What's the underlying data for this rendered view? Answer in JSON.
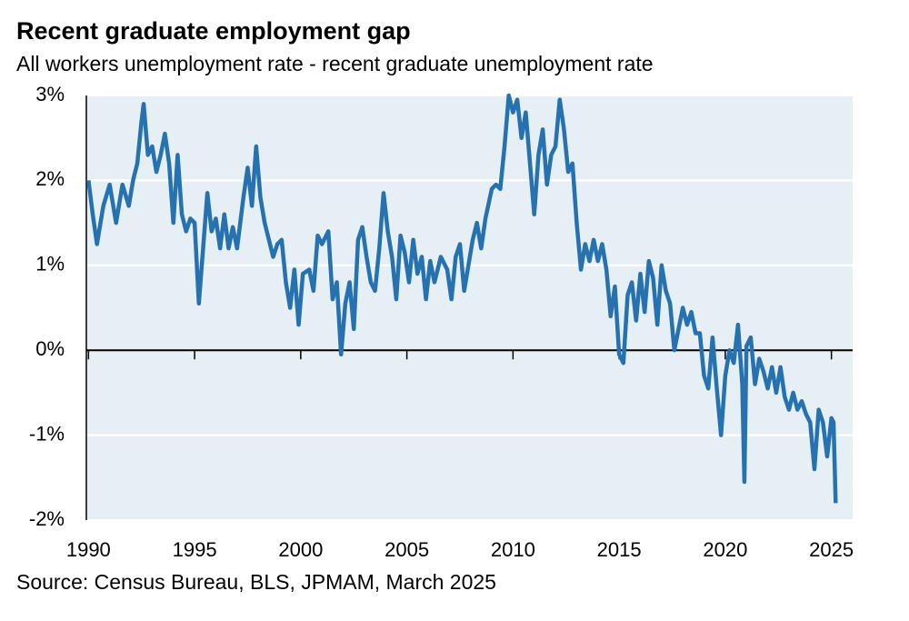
{
  "chart_data": {
    "type": "line",
    "title": "Recent graduate employment gap",
    "subtitle": "All workers unemployment rate - recent graduate unemployment rate",
    "source": "Source: Census Bureau, BLS, JPMAM, March 2025",
    "color": "#2672b0",
    "grid": true,
    "xlim": [
      1989.9,
      2026
    ],
    "xticks": [
      1990,
      1995,
      2000,
      2005,
      2010,
      2015,
      2020,
      2025
    ],
    "ylim": [
      -2,
      3
    ],
    "yticks": [
      {
        "value": 3,
        "label": "3%"
      },
      {
        "value": 2,
        "label": "2%"
      },
      {
        "value": 1,
        "label": "1%"
      },
      {
        "value": 0,
        "label": "0%"
      },
      {
        "value": -1,
        "label": "-1%"
      },
      {
        "value": -2,
        "label": "-2%"
      }
    ],
    "x": [
      1990.0,
      1990.2,
      1990.4,
      1990.7,
      1991.0,
      1991.3,
      1991.6,
      1991.9,
      1992.1,
      1992.3,
      1992.5,
      1992.6,
      1992.8,
      1993.0,
      1993.2,
      1993.4,
      1993.6,
      1993.8,
      1994.0,
      1994.2,
      1994.4,
      1994.6,
      1994.8,
      1995.0,
      1995.2,
      1995.4,
      1995.6,
      1995.8,
      1996.0,
      1996.2,
      1996.4,
      1996.6,
      1996.8,
      1997.0,
      1997.3,
      1997.5,
      1997.7,
      1997.9,
      1998.1,
      1998.3,
      1998.5,
      1998.7,
      1998.9,
      1999.1,
      1999.3,
      1999.5,
      1999.7,
      1999.9,
      2000.1,
      2000.4,
      2000.6,
      2000.8,
      2001.0,
      2001.3,
      2001.5,
      2001.7,
      2001.9,
      2002.1,
      2002.3,
      2002.5,
      2002.7,
      2002.9,
      2003.1,
      2003.3,
      2003.5,
      2003.7,
      2003.9,
      2004.1,
      2004.3,
      2004.5,
      2004.7,
      2004.9,
      2005.1,
      2005.3,
      2005.5,
      2005.7,
      2005.9,
      2006.1,
      2006.3,
      2006.6,
      2006.9,
      2007.1,
      2007.3,
      2007.5,
      2007.7,
      2007.9,
      2008.1,
      2008.3,
      2008.5,
      2008.7,
      2009.0,
      2009.2,
      2009.4,
      2009.6,
      2009.8,
      2010.0,
      2010.2,
      2010.4,
      2010.6,
      2010.8,
      2011.0,
      2011.2,
      2011.4,
      2011.6,
      2011.8,
      2012.0,
      2012.2,
      2012.4,
      2012.6,
      2012.8,
      2013.0,
      2013.2,
      2013.4,
      2013.6,
      2013.8,
      2014.0,
      2014.2,
      2014.4,
      2014.6,
      2014.8,
      2015.0,
      2015.2,
      2015.4,
      2015.6,
      2015.8,
      2016.0,
      2016.2,
      2016.4,
      2016.6,
      2016.8,
      2017.0,
      2017.2,
      2017.4,
      2017.6,
      2017.8,
      2018.0,
      2018.2,
      2018.4,
      2018.6,
      2018.8,
      2019.0,
      2019.2,
      2019.4,
      2019.6,
      2019.8,
      2020.0,
      2020.2,
      2020.4,
      2020.6,
      2020.8,
      2020.9,
      2021.0,
      2021.2,
      2021.4,
      2021.6,
      2021.8,
      2022.0,
      2022.2,
      2022.4,
      2022.6,
      2022.8,
      2023.0,
      2023.2,
      2023.4,
      2023.6,
      2023.8,
      2024.0,
      2024.2,
      2024.4,
      2024.6,
      2024.8,
      2025.0,
      2025.1,
      2025.2
    ],
    "values": [
      2.0,
      1.6,
      1.25,
      1.7,
      1.95,
      1.5,
      1.95,
      1.7,
      2.0,
      2.2,
      2.7,
      2.9,
      2.3,
      2.4,
      2.1,
      2.3,
      2.55,
      2.2,
      1.5,
      2.3,
      1.6,
      1.4,
      1.55,
      1.5,
      0.55,
      1.2,
      1.85,
      1.4,
      1.55,
      1.2,
      1.6,
      1.2,
      1.45,
      1.2,
      1.8,
      2.15,
      1.7,
      2.4,
      1.8,
      1.5,
      1.3,
      1.1,
      1.25,
      1.3,
      0.8,
      0.5,
      0.95,
      0.3,
      0.9,
      0.95,
      0.7,
      1.35,
      1.25,
      1.4,
      0.6,
      0.8,
      -0.05,
      0.55,
      0.8,
      0.25,
      1.3,
      1.45,
      1.1,
      0.8,
      0.7,
      1.2,
      1.85,
      1.4,
      1.1,
      0.6,
      1.35,
      1.15,
      0.8,
      1.3,
      0.9,
      1.1,
      0.6,
      1.05,
      0.8,
      1.1,
      0.95,
      0.6,
      1.1,
      1.25,
      0.7,
      1.0,
      1.3,
      1.5,
      1.2,
      1.55,
      1.9,
      1.95,
      1.9,
      2.4,
      3.0,
      2.8,
      2.95,
      2.5,
      2.8,
      2.2,
      1.6,
      2.3,
      2.6,
      1.95,
      2.3,
      2.4,
      2.95,
      2.6,
      2.1,
      2.2,
      1.5,
      0.95,
      1.25,
      1.05,
      1.3,
      1.05,
      1.25,
      0.95,
      0.4,
      0.75,
      -0.05,
      -0.15,
      0.65,
      0.8,
      0.35,
      0.9,
      0.45,
      1.05,
      0.85,
      0.3,
      1.0,
      0.7,
      0.55,
      0.0,
      0.25,
      0.5,
      0.3,
      0.45,
      0.2,
      0.2,
      -0.3,
      -0.45,
      0.15,
      -0.45,
      -1.0,
      -0.3,
      0.0,
      -0.15,
      0.3,
      -0.4,
      -1.55,
      0.05,
      0.15,
      -0.4,
      -0.1,
      -0.25,
      -0.45,
      -0.2,
      -0.5,
      -0.2,
      -0.55,
      -0.7,
      -0.5,
      -0.7,
      -0.6,
      -0.75,
      -0.85,
      -1.4,
      -0.7,
      -0.85,
      -1.25,
      -0.8,
      -0.85,
      -1.8
    ]
  }
}
